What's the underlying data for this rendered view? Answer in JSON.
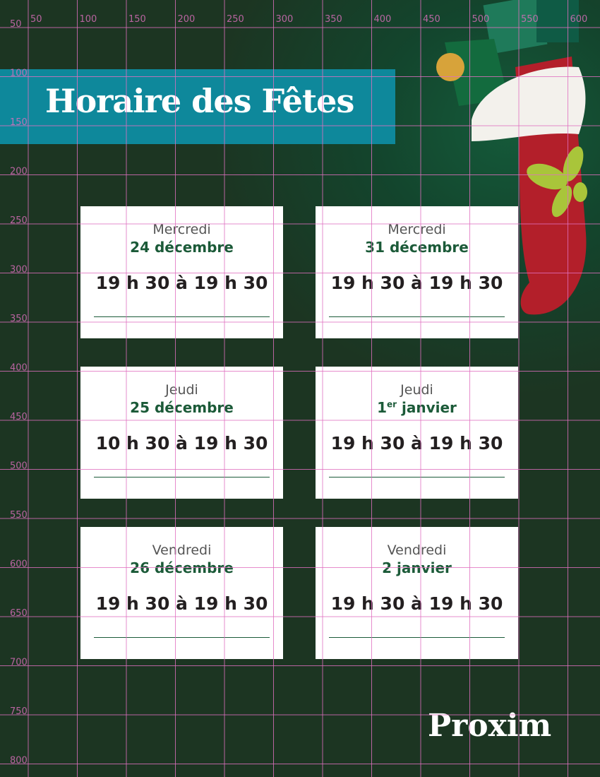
{
  "header": {
    "title": "Horaire des Fêtes"
  },
  "cards": [
    {
      "day": "Mercredi",
      "date": "24 décembre",
      "hours": "19 h 30 à 19 h 30"
    },
    {
      "day": "Mercredi",
      "date": "31 décembre",
      "hours": "19 h 30 à 19 h 30"
    },
    {
      "day": "Jeudi",
      "date": "25 décembre",
      "hours": "10 h 30 à 19 h 30"
    },
    {
      "day": "Jeudi",
      "date_num": "1",
      "date_sup": "er",
      "date_rest": " janvier",
      "hours": "19 h 30 à 19 h 30"
    },
    {
      "day": "Vendredi",
      "date": "26 décembre",
      "hours": "19 h 30 à 19 h 30"
    },
    {
      "day": "Vendredi",
      "date": "2 janvier",
      "hours": "19 h 30 à 19 h 30"
    }
  ],
  "logo": {
    "text": "Proxim"
  },
  "grid": {
    "x_labels": [
      "50",
      "100",
      "150",
      "200",
      "250",
      "300",
      "350",
      "400",
      "450",
      "500",
      "550",
      "600"
    ],
    "y_labels": [
      "50",
      "100",
      "150",
      "200",
      "250",
      "300",
      "350",
      "400",
      "450",
      "500",
      "550",
      "600",
      "650",
      "700",
      "750",
      "800"
    ],
    "color": "#e070c0"
  },
  "colors": {
    "band": "#0e889b",
    "date": "#1b5a38",
    "background": "#1c3522"
  }
}
